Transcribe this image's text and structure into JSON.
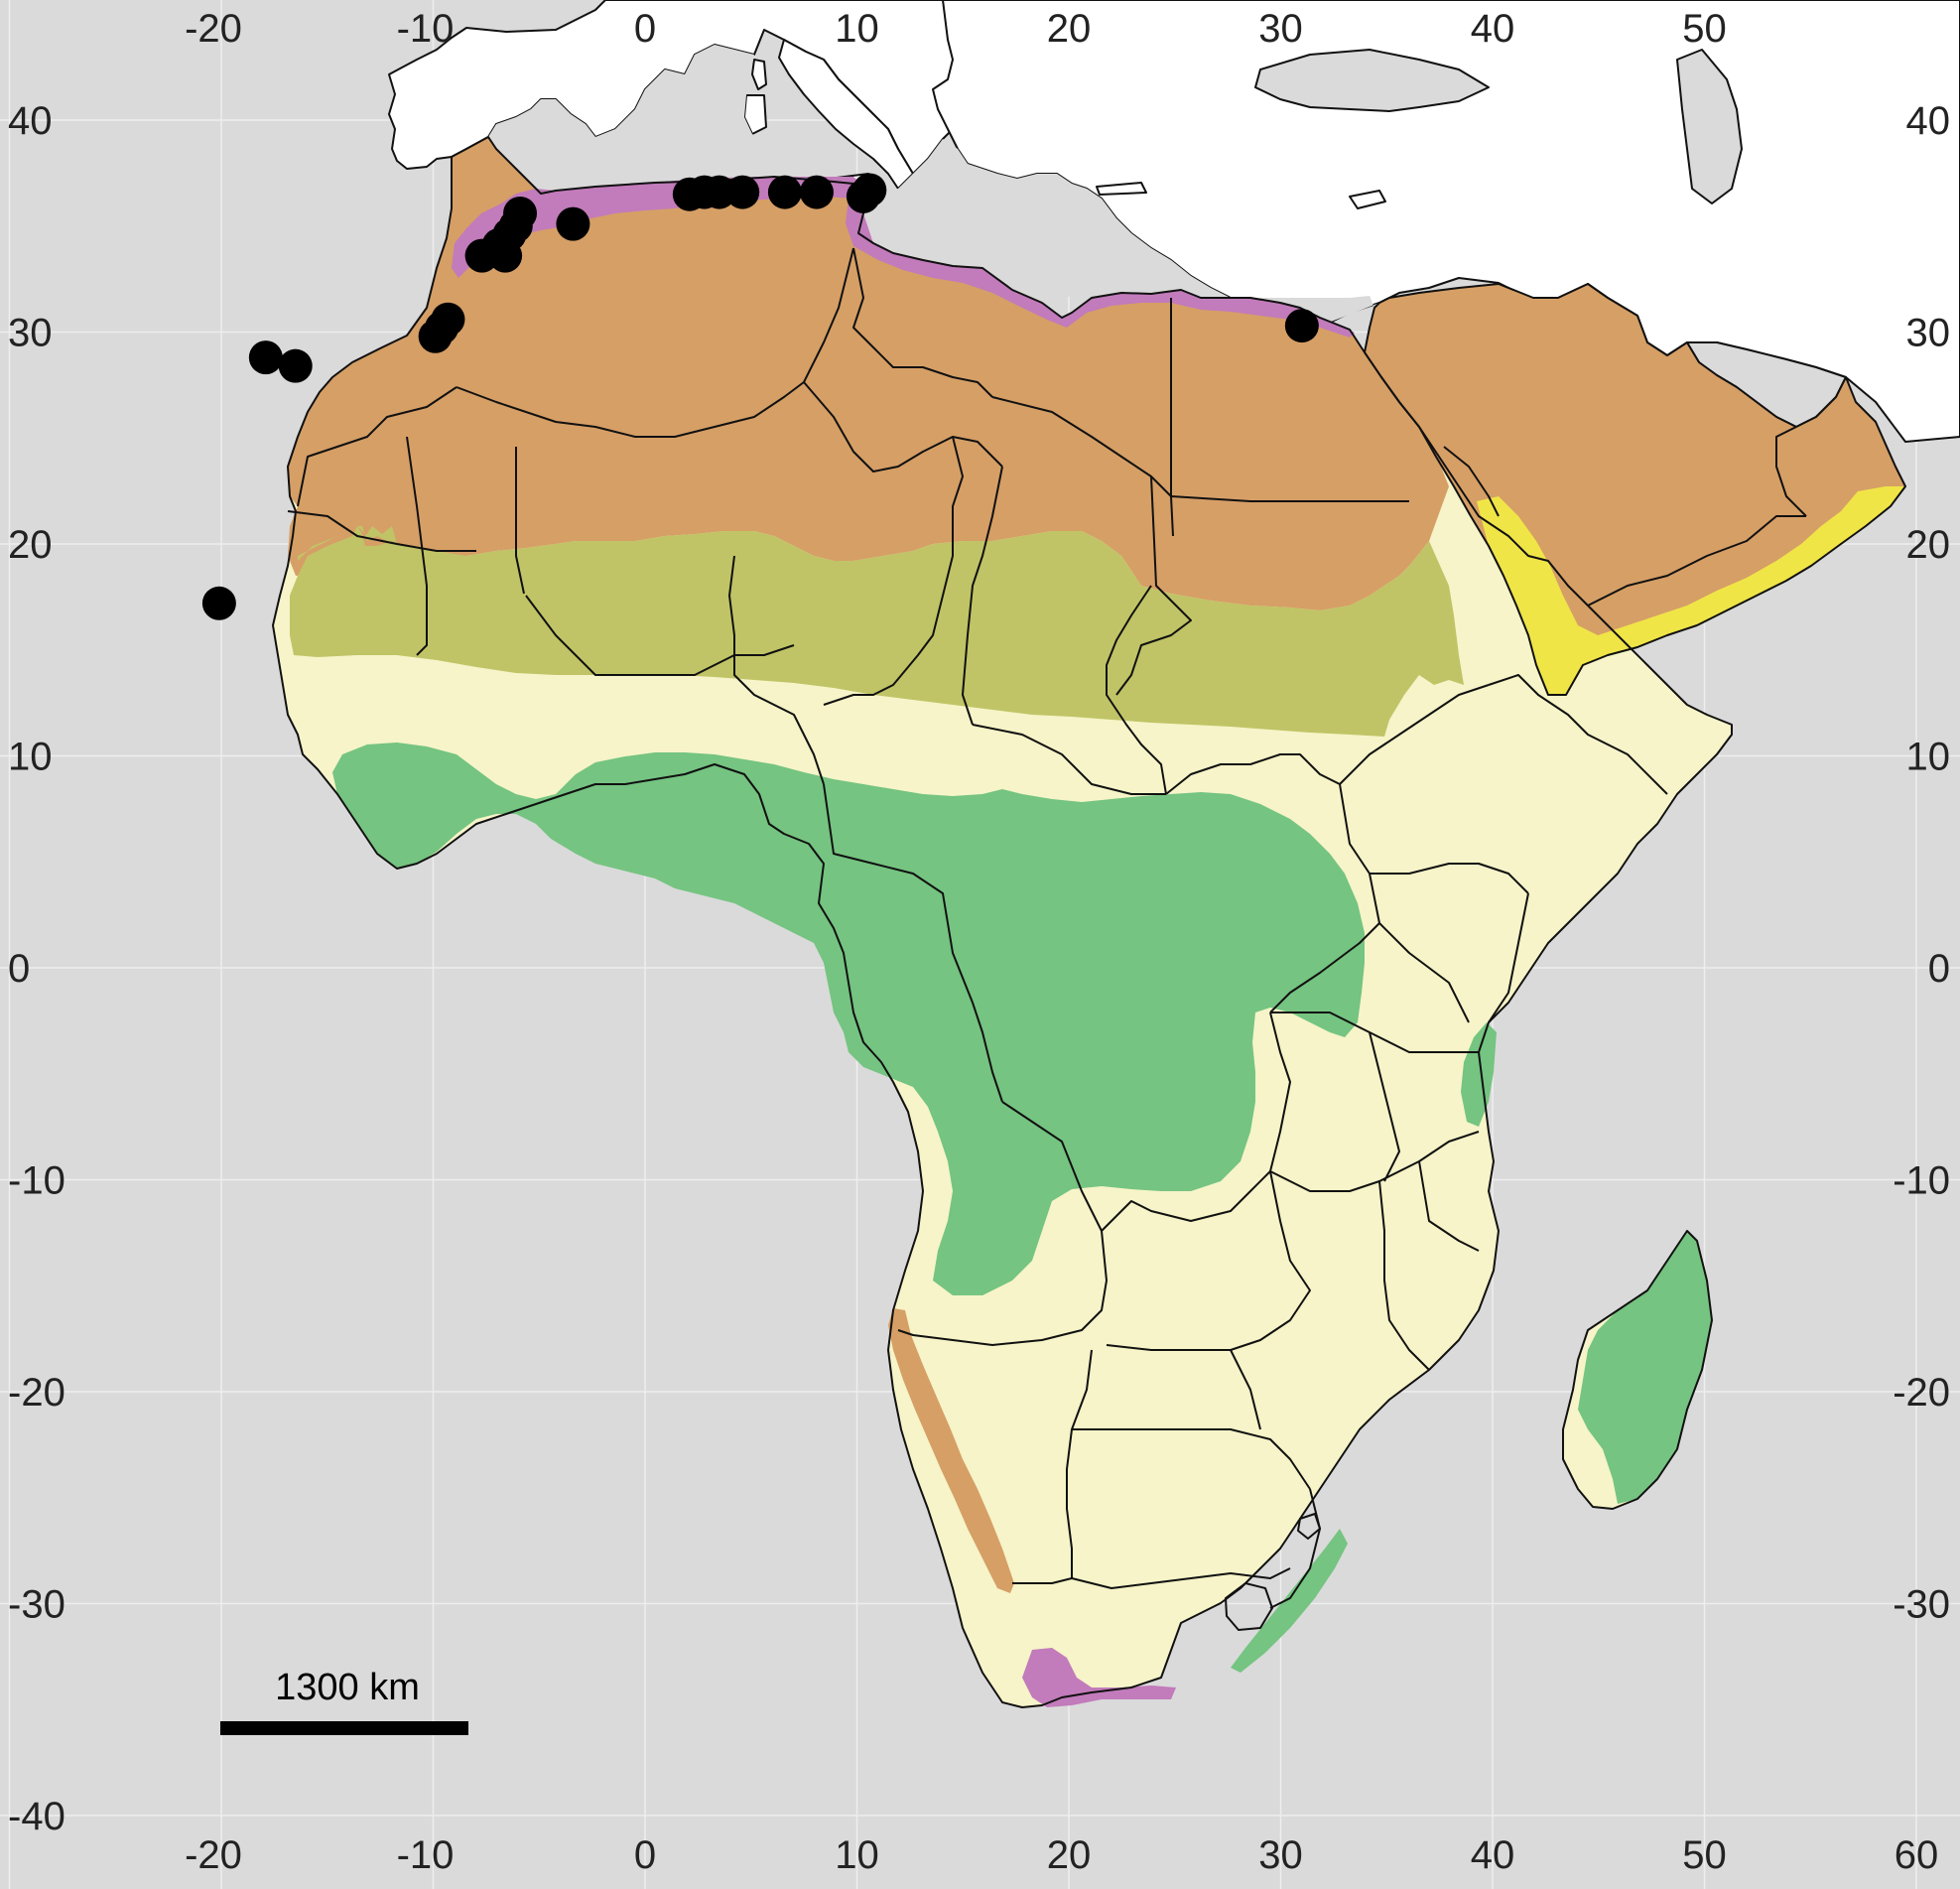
{
  "colors": {
    "sea": "#dadada",
    "land_outside": "#ffffff",
    "border": "#111111",
    "grid": "#eeeeee",
    "mediterranean_zone": "#c27bbb",
    "desert_zone": "#d69f66",
    "sahel_zone": "#c0c466",
    "savanna_zone": "#f6f4c8",
    "forest_zone": "#75c481",
    "yemen_zone": "#f0e547",
    "occurrence_marker": "#000000"
  },
  "axes": {
    "top_ticks": [
      "-20",
      "-10",
      "0",
      "10",
      "20",
      "30",
      "40",
      "50"
    ],
    "bottom_ticks": [
      "-20",
      "-10",
      "0",
      "10",
      "20",
      "30",
      "40",
      "50",
      "60"
    ],
    "left_ticks": [
      "40",
      "30",
      "20",
      "10",
      "0",
      "-10",
      "-20",
      "-30",
      "-40"
    ],
    "right_ticks": [
      "40",
      "30",
      "20",
      "10",
      "0",
      "-10",
      "-20",
      "-30"
    ]
  },
  "scale_bar": {
    "label": "1300 km"
  },
  "occurrence_icon": "filled-circle",
  "occurrences": [
    {
      "lon": -20.1,
      "lat": 17.2
    },
    {
      "lon": -17.9,
      "lat": 28.8
    },
    {
      "lon": -16.5,
      "lat": 28.4
    },
    {
      "lon": -9.9,
      "lat": 29.8
    },
    {
      "lon": -9.6,
      "lat": 30.2
    },
    {
      "lon": -9.3,
      "lat": 30.6
    },
    {
      "lon": -7.7,
      "lat": 33.6
    },
    {
      "lon": -6.9,
      "lat": 34.1
    },
    {
      "lon": -6.6,
      "lat": 33.6
    },
    {
      "lon": -6.4,
      "lat": 34.6
    },
    {
      "lon": -6.1,
      "lat": 35.0
    },
    {
      "lon": -5.9,
      "lat": 35.6
    },
    {
      "lon": -3.4,
      "lat": 35.1
    },
    {
      "lon": 2.1,
      "lat": 36.5
    },
    {
      "lon": 2.8,
      "lat": 36.6
    },
    {
      "lon": 3.5,
      "lat": 36.6
    },
    {
      "lon": 4.6,
      "lat": 36.6
    },
    {
      "lon": 6.6,
      "lat": 36.6
    },
    {
      "lon": 8.1,
      "lat": 36.6
    },
    {
      "lon": 10.3,
      "lat": 36.4
    },
    {
      "lon": 10.6,
      "lat": 36.7
    },
    {
      "lon": 31.0,
      "lat": 30.3
    }
  ]
}
